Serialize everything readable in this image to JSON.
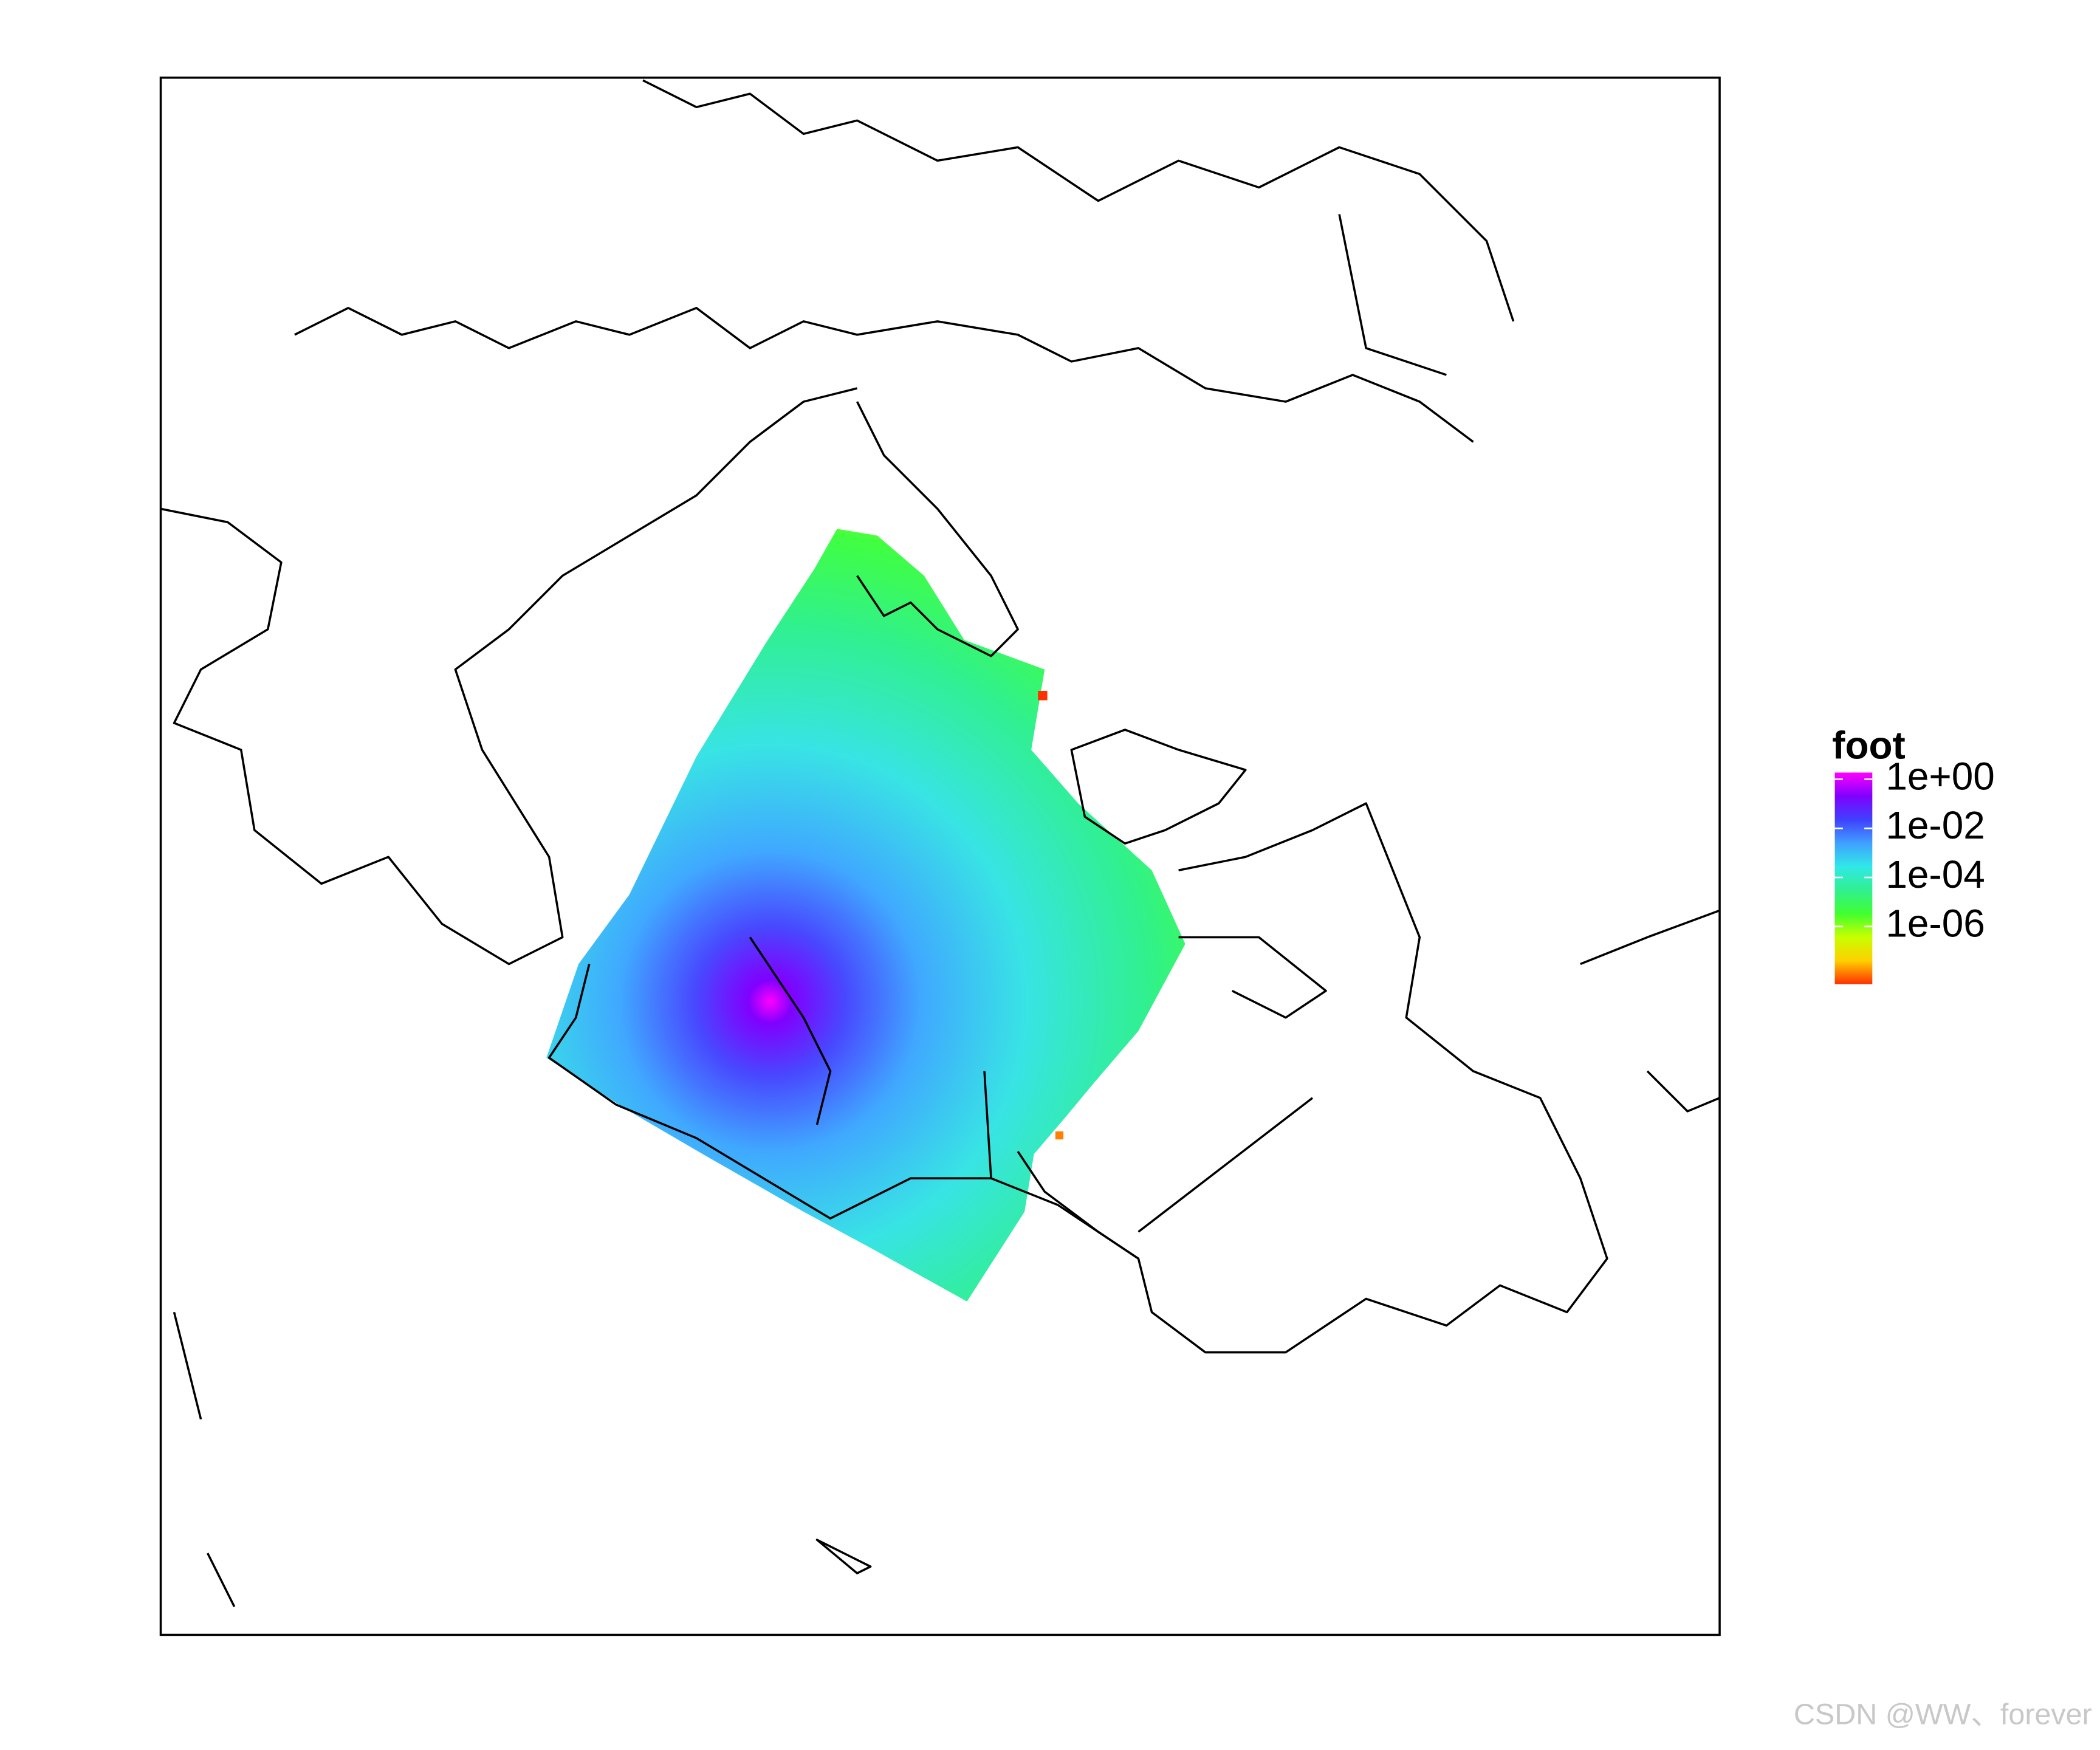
{
  "legend": {
    "title": "foot",
    "log_scale": true,
    "colors": [
      "#ff00ff",
      "#8000ff",
      "#4040ff",
      "#40a0ff",
      "#30e8e8",
      "#30f090",
      "#40ff30",
      "#c8ff00",
      "#ffd000",
      "#ff3000"
    ],
    "ticks": [
      {
        "value": 1,
        "label": "1e+00"
      },
      {
        "value": 0.01,
        "label": "1e-02"
      },
      {
        "value": 0.0001,
        "label": "1e-04"
      },
      {
        "value": 1e-06,
        "label": "1e-06"
      }
    ]
  },
  "watermark": "CSDN @WW、forever"
}
